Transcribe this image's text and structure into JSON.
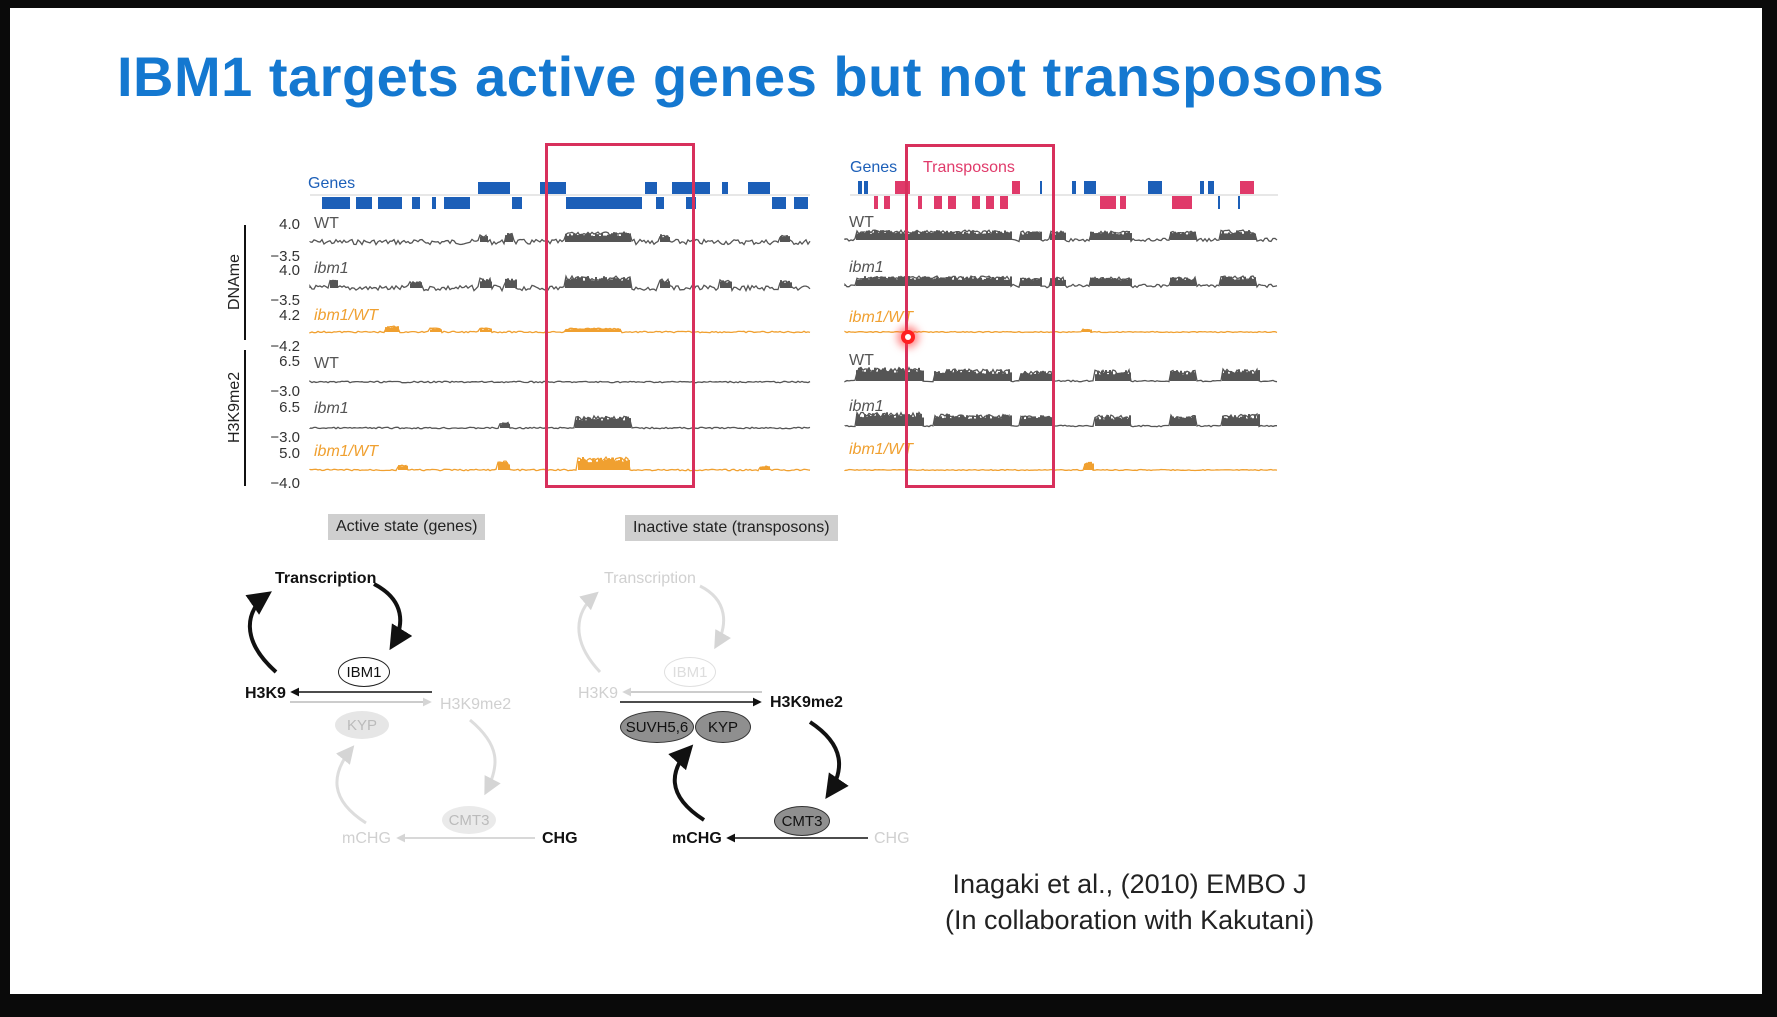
{
  "title": "IBM1 targets active genes but not transposons",
  "left_panel": {
    "features_label": "Genes",
    "y_group_labels": [
      "DNAme",
      "H3K9me2"
    ],
    "tracks": [
      {
        "name": "WT",
        "top": "4.0",
        "bottom": "−3.5",
        "italic": false,
        "color": "#555555"
      },
      {
        "name": "ibm1",
        "top": "4.0",
        "bottom": "−3.5",
        "italic": true,
        "color": "#555555"
      },
      {
        "name": "ibm1/WT",
        "top": "4.2",
        "bottom": "−4.2",
        "italic": true,
        "color": "#f0a030"
      },
      {
        "name": "WT",
        "top": "6.5",
        "bottom": "−3.0",
        "italic": false,
        "color": "#555555"
      },
      {
        "name": "ibm1",
        "top": "6.5",
        "bottom": "−3.0",
        "italic": true,
        "color": "#555555"
      },
      {
        "name": "ibm1/WT",
        "top": "5.0",
        "bottom": "−4.0",
        "italic": true,
        "color": "#f0a030"
      }
    ],
    "state_left": "Active state (genes)",
    "state_right": "Inactive state (transposons)"
  },
  "right_panel": {
    "genes_label": "Genes",
    "transposons_label": "Transposons",
    "track_names": [
      "WT",
      "ibm1",
      "ibm1/WT",
      "WT",
      "ibm1",
      "ibm1/WT"
    ]
  },
  "diagram_left": {
    "transcription": "Transcription",
    "ibm1": "IBM1",
    "h3k9": "H3K9",
    "h3k9me2": "H3K9me2",
    "kyp": "KYP",
    "cmt3": "CMT3",
    "mchg": "mCHG",
    "chg": "CHG"
  },
  "diagram_right": {
    "transcription": "Transcription",
    "ibm1": "IBM1",
    "h3k9": "H3K9",
    "h3k9me2": "H3K9me2",
    "suvh": "SUVH5,6",
    "kyp": "KYP",
    "cmt3": "CMT3",
    "mchg": "mCHG",
    "chg": "CHG"
  },
  "citation": {
    "line1": "Inagaki et al., (2010) EMBO J",
    "line2": "(In collaboration with Kakutani)"
  },
  "colors": {
    "title": "#1478d0",
    "genes": "#1c5fb8",
    "transposons": "#e03a6a",
    "highlight": "#d8305c",
    "track_gray": "#555555",
    "track_orange": "#f0a030"
  }
}
